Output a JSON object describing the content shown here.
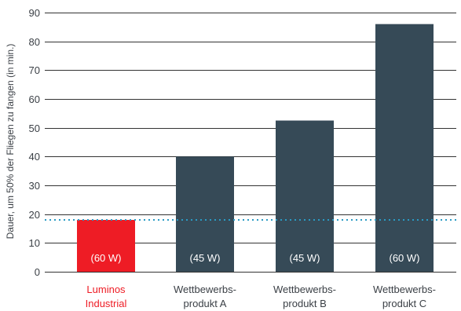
{
  "chart_data": {
    "type": "bar",
    "ylabel": "Dauer, um 50% der Fliegen zu fangen (in min.)",
    "ylim": [
      0,
      90
    ],
    "yticks": [
      0,
      10,
      20,
      30,
      40,
      50,
      60,
      70,
      80,
      90
    ],
    "grid": true,
    "reference_line": 18,
    "categories": [
      {
        "line1": "Luminos",
        "line2": "Industrial"
      },
      {
        "line1": "Wettbewerbs-",
        "line2": "produkt A"
      },
      {
        "line1": "Wettbewerbs-",
        "line2": "produkt B"
      },
      {
        "line1": "Wettbewerbs-",
        "line2": "produkt C"
      }
    ],
    "values": [
      18,
      40,
      52.5,
      86
    ],
    "bar_labels": [
      "(60 W)",
      "(45 W)",
      "(45 W)",
      "(60 W)"
    ],
    "colors": {
      "highlight": "#ee1c25",
      "bar": "#364a57",
      "grid": "#333333",
      "reference": "#2a9bc4",
      "highlight_text": "#ee1c25",
      "text": "#3a3f45"
    }
  }
}
